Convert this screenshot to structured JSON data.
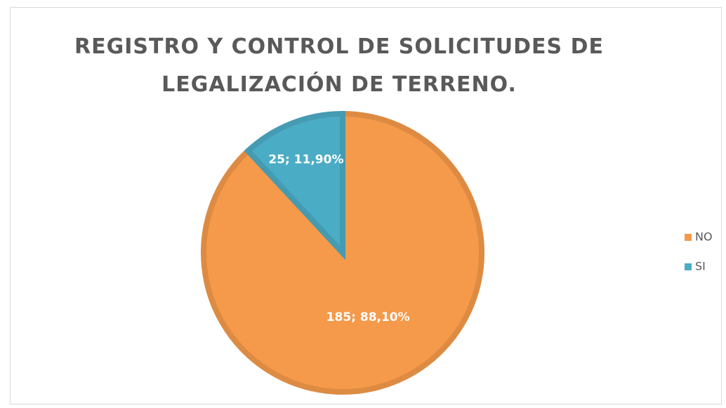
{
  "chart_data": {
    "type": "pie",
    "title": "REGISTRO Y CONTROL DE SOLICITUDES DE LEGALIZACIÓN DE TERRENO.",
    "categories": [
      "NO",
      "SI"
    ],
    "values": [
      185,
      25
    ],
    "value_labels": [
      "185; 88,10%",
      "25; 11,90%"
    ],
    "colors": [
      "#f59a4a",
      "#4bacc6"
    ],
    "legend": "right"
  }
}
